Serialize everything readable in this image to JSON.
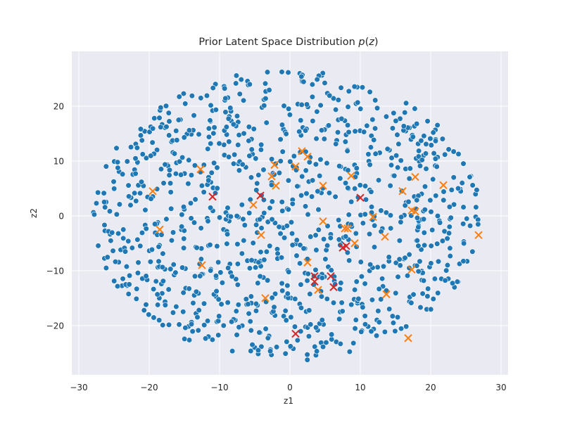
{
  "chart_data": {
    "type": "scatter",
    "title": "Prior Latent Space Distribution p(z)",
    "title_parts": {
      "prefix": "Prior Latent Space Distribution ",
      "math": "p",
      "open": "(",
      "var": "z",
      "close": ")"
    },
    "xlabel": "z1",
    "ylabel": "z2",
    "xlim": [
      -31,
      31
    ],
    "ylim": [
      -29,
      30
    ],
    "xticks": [
      -30,
      -20,
      -10,
      0,
      10,
      20,
      30
    ],
    "yticks": [
      -20,
      -10,
      0,
      10,
      20
    ],
    "xtick_labels": [
      "−30",
      "−20",
      "−10",
      "0",
      "10",
      "20",
      "30"
    ],
    "ytick_labels": [
      "−20",
      "−10",
      "0",
      "10",
      "20"
    ],
    "grid": true,
    "background": "#eaeaf2",
    "colors": {
      "points": "#1f77b4",
      "orange_markers": "#ff7f0e",
      "red_markers": "#d62728"
    },
    "series": [
      {
        "marker": "circle",
        "color": "#1f77b4",
        "approximate_count": 1000,
        "distribution": "approximately uniform within an elliptical region centered near (0, 0), spanning roughly -28 to 27 on z1 and -27 to 27 on z2"
      },
      {
        "marker": "x",
        "color": "#ff7f0e",
        "points": [
          [
            -19.5,
            4.5
          ],
          [
            -18.5,
            -2.5
          ],
          [
            -12.7,
            8.5
          ],
          [
            -12.5,
            -9
          ],
          [
            -5.2,
            2.0
          ],
          [
            -4.1,
            -3.5
          ],
          [
            -3.5,
            -15.0
          ],
          [
            -2.6,
            7.2
          ],
          [
            -2.2,
            9.3
          ],
          [
            -2.0,
            5.5
          ],
          [
            0.8,
            9.0
          ],
          [
            1.7,
            11.8
          ],
          [
            2.5,
            10.8
          ],
          [
            2.5,
            -8.5
          ],
          [
            4.0,
            -13.5
          ],
          [
            4.7,
            -1.0
          ],
          [
            4.7,
            5.5
          ],
          [
            7.8,
            -2.3
          ],
          [
            8.2,
            -2.3
          ],
          [
            8.7,
            7.3
          ],
          [
            9.2,
            -5.0
          ],
          [
            11.8,
            -0.2
          ],
          [
            13.5,
            -3.8
          ],
          [
            13.7,
            -14.3
          ],
          [
            16.0,
            4.5
          ],
          [
            17.3,
            -9.8
          ],
          [
            17.3,
            1.0
          ],
          [
            17.8,
            7.1
          ],
          [
            17.8,
            0.8
          ],
          [
            21.8,
            5.6
          ],
          [
            16.8,
            -22.3
          ],
          [
            26.8,
            -3.5
          ]
        ]
      },
      {
        "marker": "x",
        "color": "#d62728",
        "points": [
          [
            -11.0,
            3.5
          ],
          [
            -4.2,
            3.7
          ],
          [
            0.8,
            -21.5
          ],
          [
            3.5,
            -11.0
          ],
          [
            3.5,
            -12.0
          ],
          [
            5.8,
            -11.0
          ],
          [
            6.2,
            -13.0
          ],
          [
            7.5,
            -5.8
          ],
          [
            8.0,
            -5.5
          ],
          [
            10.0,
            3.3
          ]
        ]
      }
    ]
  }
}
